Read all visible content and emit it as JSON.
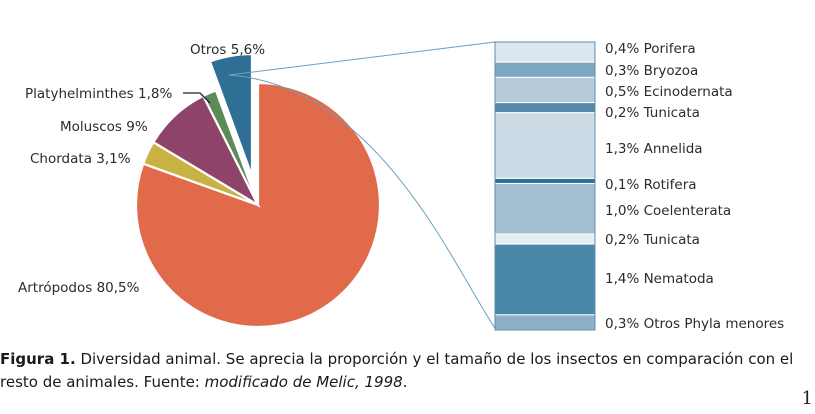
{
  "chart_data": [
    {
      "type": "pie",
      "slices": [
        {
          "label": "Artrópodos 80,5%",
          "name": "Artrópodos",
          "value": 80.5,
          "color": "#e06a49"
        },
        {
          "label": "Chordata 3,1%",
          "name": "Chordata",
          "value": 3.1,
          "color": "#c8b243"
        },
        {
          "label": "Moluscos 9%",
          "name": "Moluscos",
          "value": 9.0,
          "color": "#8e4468"
        },
        {
          "label": "Platyhelminthes 1,8%",
          "name": "Platyhelminthes",
          "value": 1.8,
          "color": "#5b8c58"
        },
        {
          "label": "Otros 5,6%",
          "name": "Otros",
          "value": 5.6,
          "color": "#2f6f95",
          "exploded": true
        }
      ]
    },
    {
      "type": "bar",
      "stacked": true,
      "orientation": "vertical",
      "breakdown_of": "Otros 5,6%",
      "segments": [
        {
          "label": "0,4% Porifera",
          "name": "Porifera",
          "value": 0.4,
          "color": "#dce6ee"
        },
        {
          "label": "0,3% Bryozoa",
          "name": "Bryozoa",
          "value": 0.3,
          "color": "#7ea6c0"
        },
        {
          "label": "0,5% Ecinodernata",
          "name": "Ecinodernata",
          "value": 0.5,
          "color": "#b6cbd9"
        },
        {
          "label": "0,2% Tunicata",
          "name": "Tunicata",
          "value": 0.2,
          "color": "#5588a9"
        },
        {
          "label": "1,3% Annelida",
          "name": "Annelida",
          "value": 1.3,
          "color": "#cddbe6"
        },
        {
          "label": "0,1% Rotifera",
          "name": "Rotifera",
          "value": 0.1,
          "color": "#2f6f95"
        },
        {
          "label": "1,0% Coelenterata",
          "name": "Coelenterata",
          "value": 1.0,
          "color": "#a4bfd2"
        },
        {
          "label": "0,2% Tunicata",
          "name": "Tunicata",
          "value": 0.2,
          "color": "#e6eef4"
        },
        {
          "label": "1,4% Nematoda",
          "name": "Nematoda",
          "value": 1.4,
          "color": "#4a86a8"
        },
        {
          "label": "0,3% Otros Phyla menores",
          "name": "Otros Phyla menores",
          "value": 0.3,
          "color": "#8fb0c6"
        }
      ]
    }
  ],
  "caption": {
    "label": "Figura 1.",
    "text": " Diversidad animal. Se aprecia la proporción y el tamaño de los insectos en comparación con el resto de animales. Fuente: ",
    "source": "modificado de Melic, 1998",
    "end": "."
  },
  "corner_mark": "1"
}
